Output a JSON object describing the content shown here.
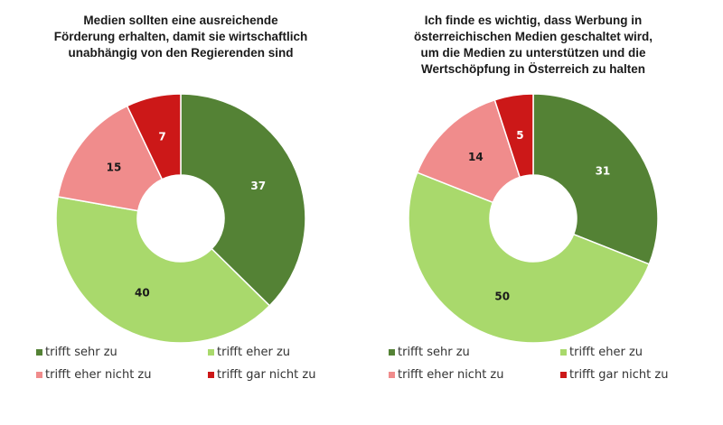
{
  "chart_data": [
    {
      "type": "pie",
      "variant": "donut",
      "title": "Medien sollten eine ausreichende\nFörderung erhalten, damit sie wirtschaftlich\nunabhängig von den Regierenden sind",
      "categories": [
        "trifft sehr zu",
        "trifft eher zu",
        "trifft eher nicht zu",
        "trifft gar nicht zu"
      ],
      "values": [
        37,
        40,
        15,
        7
      ],
      "colors": [
        "#548235",
        "#a9d96c",
        "#f08c8c",
        "#cc1818"
      ],
      "label_colors": [
        "#ffffff",
        "#1a1a1a",
        "#1a1a1a",
        "#ffffff"
      ],
      "legend_position": "bottom",
      "start": "top, clockwise"
    },
    {
      "type": "pie",
      "variant": "donut",
      "title": "Ich finde es wichtig, dass Werbung in\nösterreichischen Medien geschaltet wird,\num die Medien zu unterstützen und die\nWertschöpfung in Österreich zu halten",
      "categories": [
        "trifft sehr zu",
        "trifft eher zu",
        "trifft eher nicht zu",
        "trifft gar nicht zu"
      ],
      "values": [
        31,
        50,
        14,
        5
      ],
      "colors": [
        "#548235",
        "#a9d96c",
        "#f08c8c",
        "#cc1818"
      ],
      "label_colors": [
        "#ffffff",
        "#1a1a1a",
        "#1a1a1a",
        "#ffffff"
      ],
      "legend_position": "bottom",
      "start": "top, clockwise"
    }
  ]
}
